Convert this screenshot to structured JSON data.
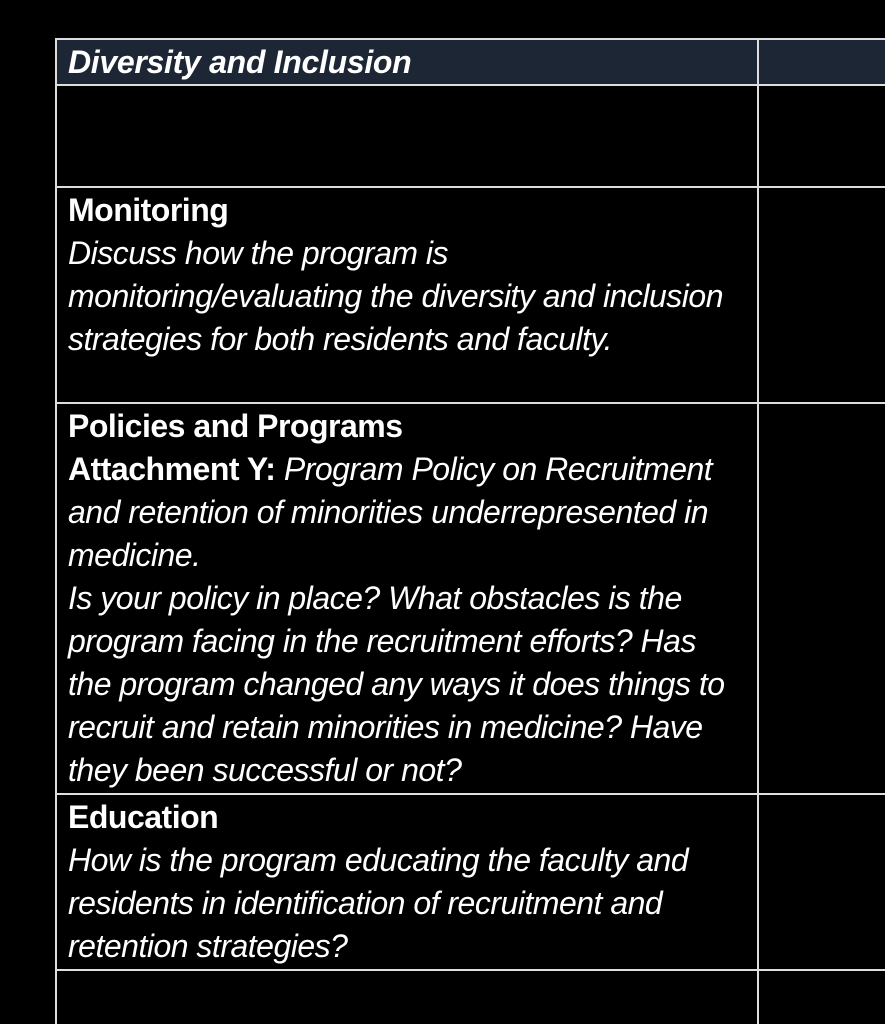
{
  "colors": {
    "page_background": "#000000",
    "header_background": "#1c2634",
    "border_color": "#dedede",
    "text_color": "#ffffff"
  },
  "table": {
    "header": {
      "title": "Diversity and Inclusion"
    },
    "rows": {
      "monitoring": {
        "heading": "Monitoring",
        "question": "Discuss how the program is monitoring/evaluating the diversity and inclusion strategies for both residents and faculty."
      },
      "policies": {
        "heading": "Policies and Programs",
        "attachment_label": "Attachment Y:",
        "attachment_title": "Program Policy on Recruitment and retention of minorities underrepresented in medicine.",
        "question": "Is your policy in place? What obstacles is the program facing in the recruitment efforts? Has the program changed any ways it does things to recruit and retain minorities in medicine? Have they been successful or not?"
      },
      "education": {
        "heading": "Education",
        "question": "How is the program educating the faculty and residents in identification of recruitment and retention strategies?"
      }
    }
  }
}
